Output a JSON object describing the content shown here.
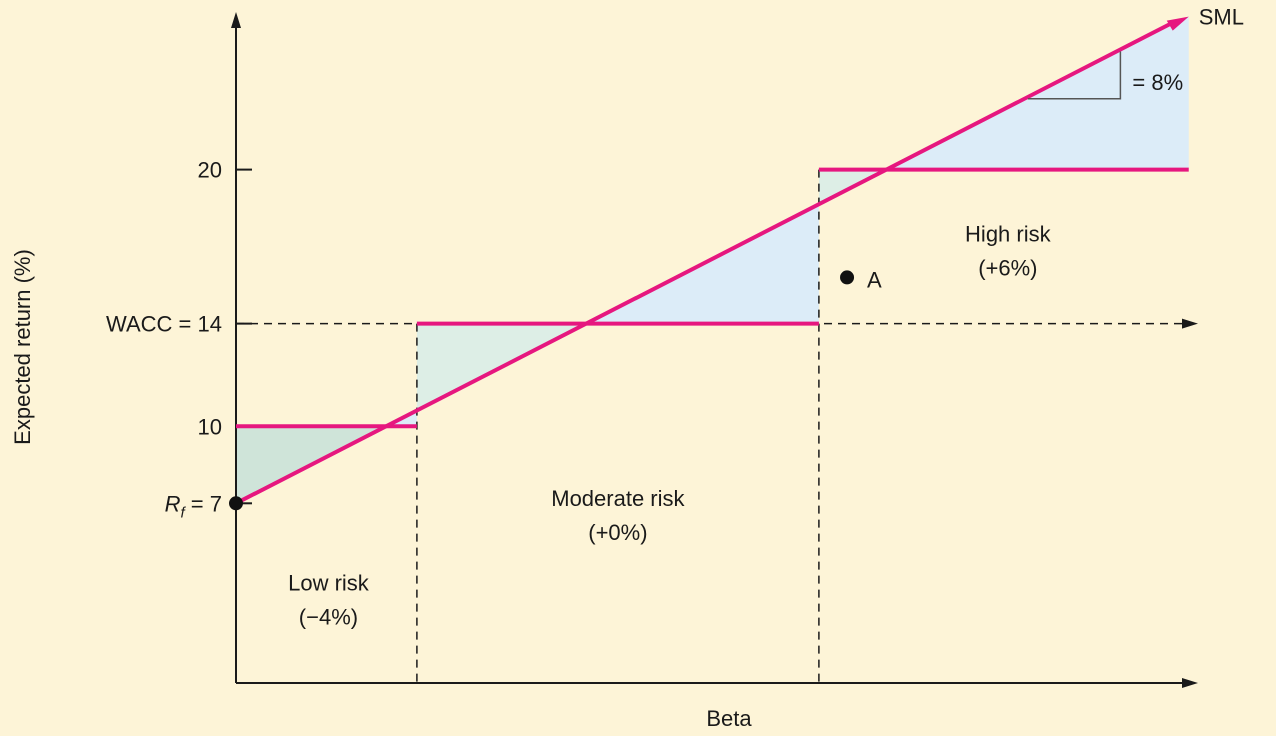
{
  "chart_data": {
    "type": "line",
    "title": "",
    "xlabel": "Beta",
    "ylabel": "Expected return (%)",
    "ylim": [
      0,
      27
    ],
    "xlim": [
      0,
      2.37
    ],
    "y_ticks": [
      {
        "value": 20,
        "label": "20"
      },
      {
        "value": 14,
        "label": "WACC = 14"
      },
      {
        "value": 10,
        "label": "10"
      },
      {
        "value": 7,
        "label_var": "R",
        "label_sub": "f",
        "label_rest": " = 7"
      }
    ],
    "series": [
      {
        "name": "SML",
        "x": [
          0,
          2.37
        ],
        "y": [
          7,
          25.96
        ]
      }
    ],
    "hurdle_rates": [
      {
        "x_start": 0,
        "x_end": 0.45,
        "y": 10
      },
      {
        "x_start": 0.45,
        "x_end": 1.45,
        "y": 14
      },
      {
        "x_start": 1.45,
        "x_end": 2.37,
        "y": 20
      }
    ],
    "wacc": 14,
    "risk_boundaries": [
      0.45,
      1.45
    ],
    "regions": [
      {
        "name": "Low risk",
        "adj": "(−4%)",
        "x": 0.23,
        "y": 3.6
      },
      {
        "name": "Moderate risk",
        "adj": "(+0%)",
        "x": 0.95,
        "y": 6.9
      },
      {
        "name": "High risk",
        "adj": "(+6%)",
        "x": 1.92,
        "y": 17.2
      }
    ],
    "points": [
      {
        "label": "",
        "x": 0,
        "y": 7
      },
      {
        "label": "A",
        "x": 1.52,
        "y": 15.8
      }
    ],
    "slope_annotation": "= 8%",
    "colors": {
      "background": "#fdf4d7",
      "line": "#e6177f",
      "fill_above": "#ddeee6",
      "fill_below": "#dcecf8",
      "fill_low": "#cfe4d9",
      "axis": "#1a1a1a"
    }
  }
}
